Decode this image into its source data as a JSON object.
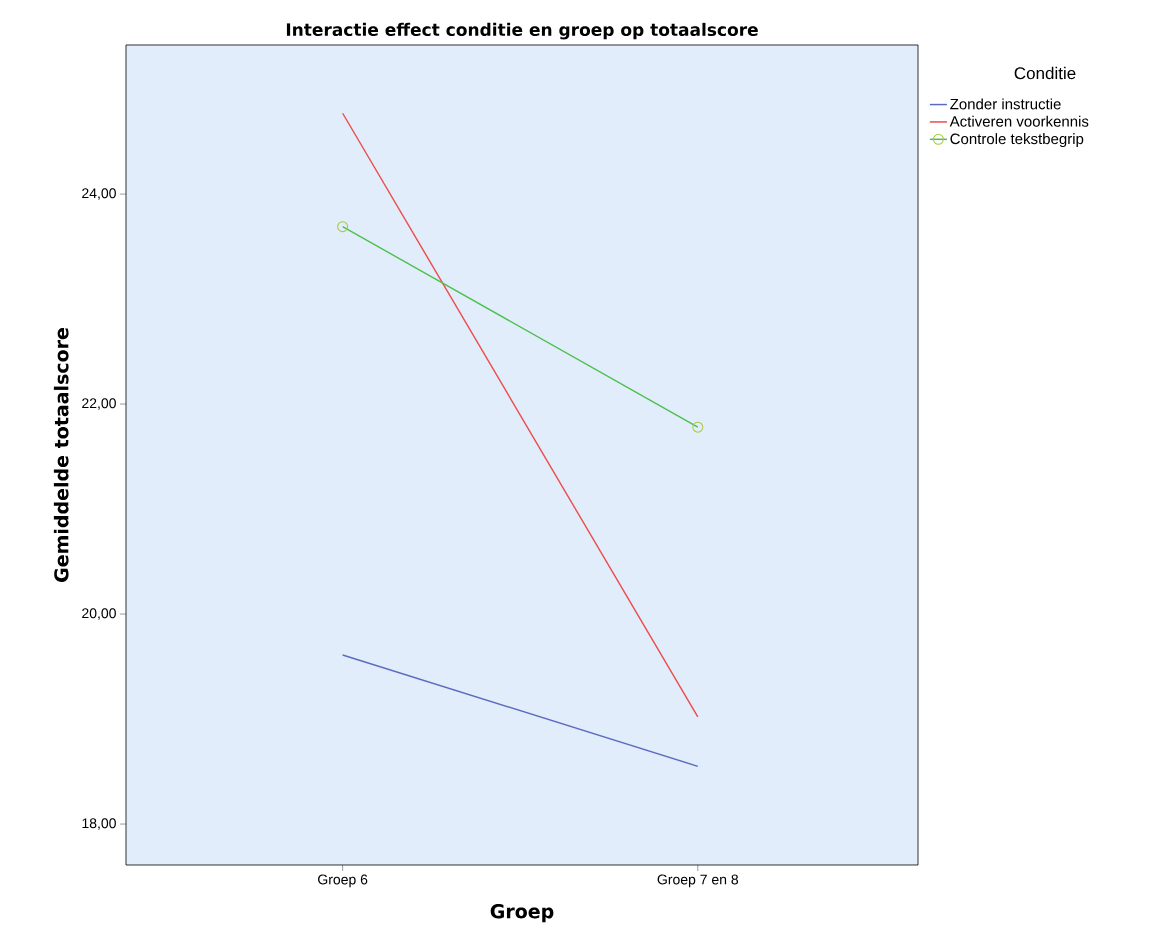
{
  "chart_data": {
    "type": "line",
    "title": "Interactie effect conditie en groep op totaalscore",
    "xlabel": "Groep",
    "ylabel": "Gemiddelde totaalscore",
    "legend_title": "Conditie",
    "legend": "top right",
    "grid": false,
    "categories": [
      "Groep 6",
      "Groep 7 en 8"
    ],
    "series": [
      {
        "name": "Zonder instructie",
        "color": "#5b6bc0",
        "values": [
          19.61,
          18.55
        ],
        "marker": "none"
      },
      {
        "name": "Activeren voorkennis",
        "color": "#ee4a4a",
        "values": [
          24.77,
          19.02
        ],
        "marker": "none"
      },
      {
        "name": "Controle tekstbegrip",
        "color": "#4cc04c",
        "values": [
          23.69,
          21.78
        ],
        "marker": "circle"
      }
    ],
    "ylim": [
      17.61,
      25.42
    ],
    "yticks": [
      {
        "value": 18,
        "label": "18,00"
      },
      {
        "value": 20,
        "label": "20,00"
      },
      {
        "value": 22,
        "label": "22,00"
      },
      {
        "value": 24,
        "label": "24,00"
      }
    ]
  }
}
